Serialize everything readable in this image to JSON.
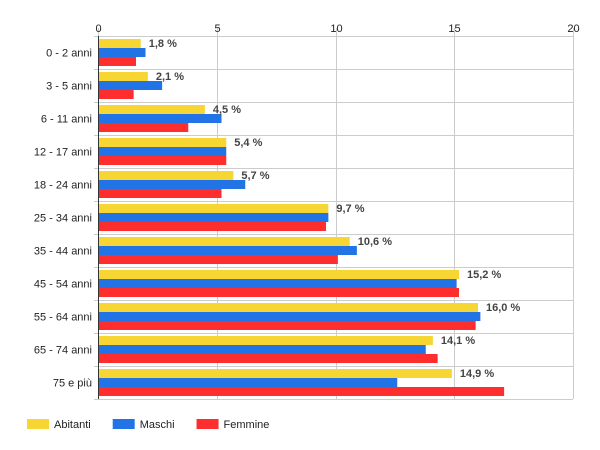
{
  "chart_data": {
    "type": "bar",
    "orientation": "horizontal",
    "categories": [
      "0 - 2 anni",
      "3 - 5 anni",
      "6 - 11 anni",
      "12 - 17 anni",
      "18 - 24 anni",
      "25 - 34 anni",
      "35 - 44 anni",
      "45 - 54 anni",
      "55 - 64 anni",
      "65 - 74 anni",
      "75 e più"
    ],
    "series": [
      {
        "name": "Abitanti",
        "color": "#F7D633",
        "values": [
          1.8,
          2.1,
          4.5,
          5.4,
          5.7,
          9.7,
          10.6,
          15.2,
          16.0,
          14.1,
          14.9
        ]
      },
      {
        "name": "Maschi",
        "color": "#2273E6",
        "values": [
          2.0,
          2.7,
          5.2,
          5.4,
          6.2,
          9.7,
          10.9,
          15.1,
          16.1,
          13.8,
          12.6
        ]
      },
      {
        "name": "Femmine",
        "color": "#FF2E2E",
        "values": [
          1.6,
          1.5,
          3.8,
          5.4,
          5.2,
          9.6,
          10.1,
          15.2,
          15.9,
          14.3,
          17.1
        ]
      }
    ],
    "data_labels": [
      "1,8 %",
      "2,1 %",
      "4,5 %",
      "5,4 %",
      "5,7 %",
      "9,7 %",
      "10,6 %",
      "15,2 %",
      "16,0 %",
      "14,1 %",
      "14,9 %"
    ],
    "x_ticks": [
      "0",
      "5",
      "10",
      "15",
      "20"
    ],
    "xlim": [
      0,
      20
    ],
    "grid": true,
    "legend_position": "bottom-left",
    "title": "",
    "xlabel": "",
    "ylabel": ""
  }
}
